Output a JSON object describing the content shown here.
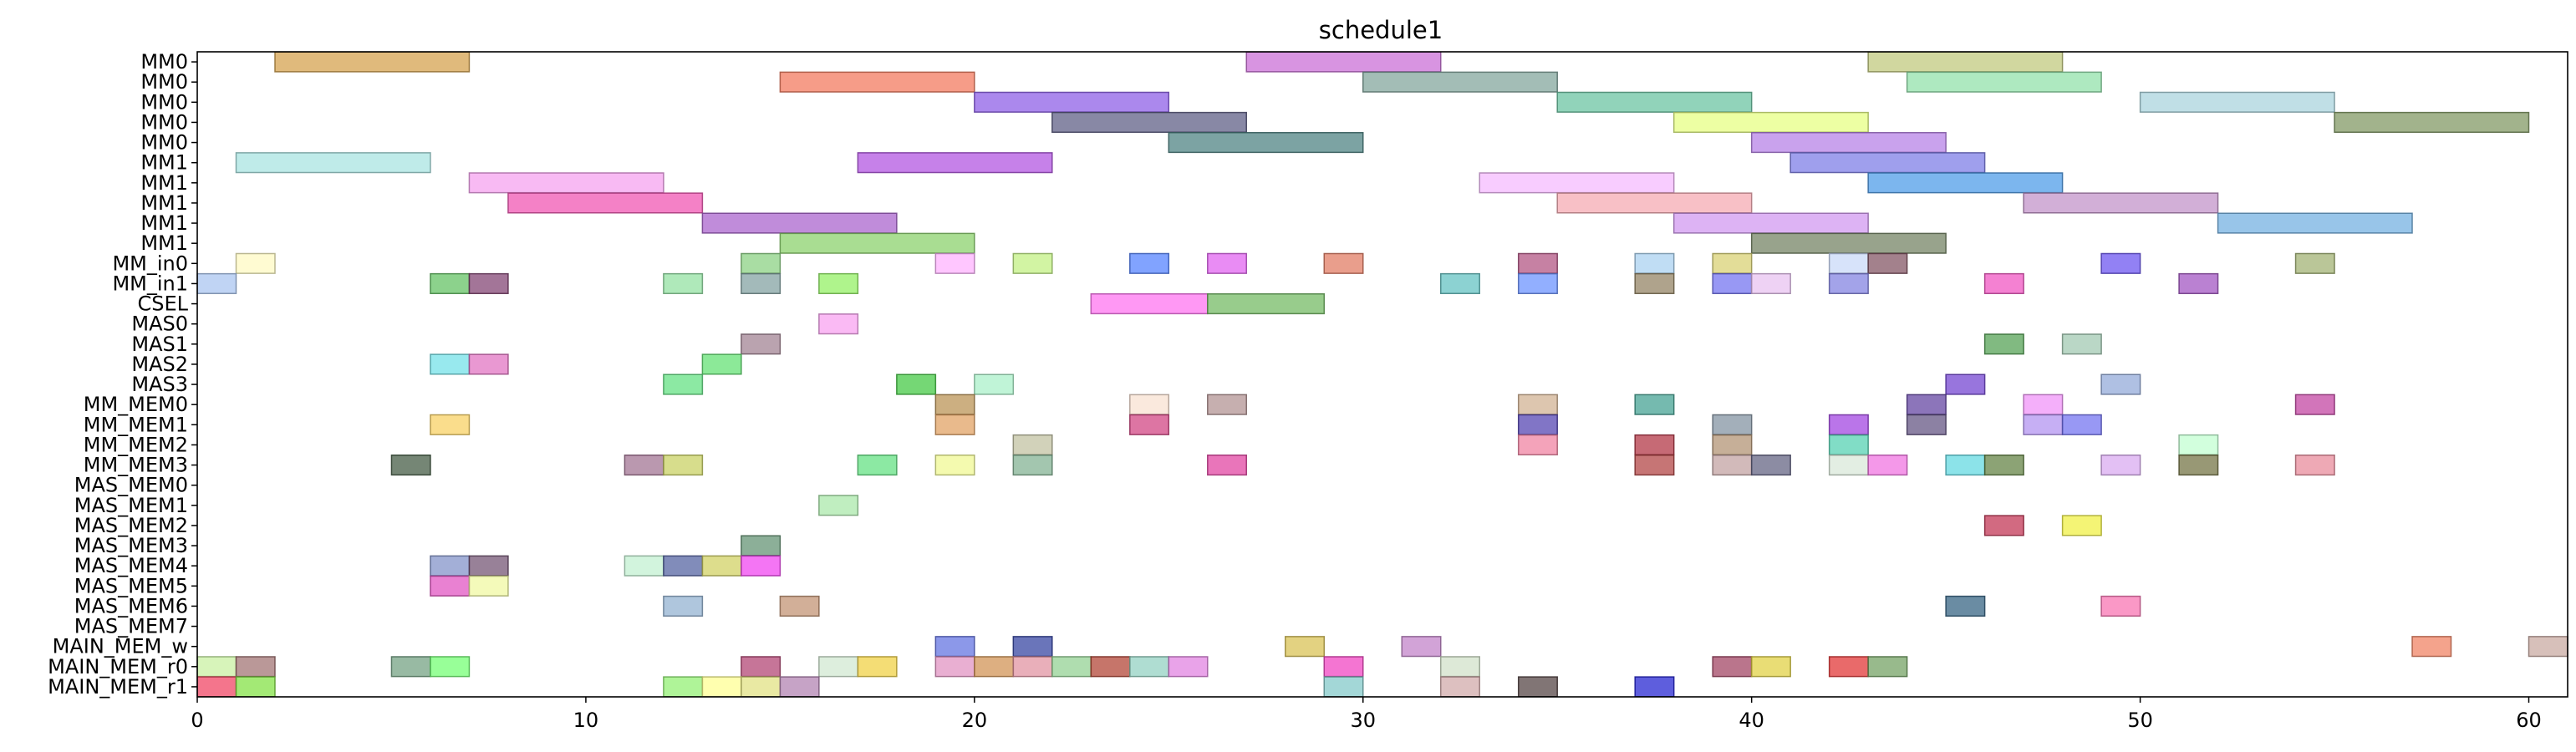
{
  "chart_data": {
    "type": "gantt",
    "title": "schedule1",
    "xlabel": "",
    "ylabel": "",
    "xlim": [
      0,
      61
    ],
    "x_ticks": [
      0,
      10,
      20,
      30,
      40,
      50,
      60
    ],
    "grid": false,
    "legend": "none",
    "rows": [
      "MM0",
      "MM0",
      "MM0",
      "MM0",
      "MM0",
      "MM1",
      "MM1",
      "MM1",
      "MM1",
      "MM1",
      "MM_in0",
      "MM_in1",
      "CSEL",
      "MAS0",
      "MAS1",
      "MAS2",
      "MAS3",
      "MM_MEM0",
      "MM_MEM1",
      "MM_MEM2",
      "MM_MEM3",
      "MAS_MEM0",
      "MAS_MEM1",
      "MAS_MEM2",
      "MAS_MEM3",
      "MAS_MEM4",
      "MAS_MEM5",
      "MAS_MEM6",
      "MAS_MEM7",
      "MAIN_MEM_w",
      "MAIN_MEM_r0",
      "MAIN_MEM_r1"
    ],
    "tasks": [
      {
        "row": 0,
        "start": 2,
        "end": 7,
        "color": "#d4a04a"
      },
      {
        "row": 0,
        "start": 27,
        "end": 32,
        "color": "#c96bd6"
      },
      {
        "row": 0,
        "start": 43,
        "end": 48,
        "color": "#bfc87a"
      },
      {
        "row": 1,
        "start": 15,
        "end": 20,
        "color": "#f2765a"
      },
      {
        "row": 1,
        "start": 30,
        "end": 35,
        "color": "#7fa39a"
      },
      {
        "row": 1,
        "start": 44,
        "end": 49,
        "color": "#8fe0a8"
      },
      {
        "row": 2,
        "start": 20,
        "end": 25,
        "color": "#8a5ae6"
      },
      {
        "row": 2,
        "start": 35,
        "end": 40,
        "color": "#66c2a0"
      },
      {
        "row": 2,
        "start": 50,
        "end": 55,
        "color": "#a8d3dc"
      },
      {
        "row": 3,
        "start": 22,
        "end": 27,
        "color": "#5a5a82"
      },
      {
        "row": 3,
        "start": 38,
        "end": 43,
        "color": "#e6ff80"
      },
      {
        "row": 3,
        "start": 55,
        "end": 60,
        "color": "#7e9660"
      },
      {
        "row": 4,
        "start": 25,
        "end": 30,
        "color": "#4a8080"
      },
      {
        "row": 4,
        "start": 40,
        "end": 45,
        "color": "#b47ee6"
      },
      {
        "row": 5,
        "start": 1,
        "end": 6,
        "color": "#a6e3e0"
      },
      {
        "row": 5,
        "start": 17,
        "end": 22,
        "color": "#b050e0"
      },
      {
        "row": 5,
        "start": 41,
        "end": 46,
        "color": "#7a7ae6"
      },
      {
        "row": 6,
        "start": 7,
        "end": 12,
        "color": "#f5a0ee"
      },
      {
        "row": 6,
        "start": 33,
        "end": 38,
        "color": "#f5b8ff"
      },
      {
        "row": 6,
        "start": 43,
        "end": 48,
        "color": "#4a9ae8"
      },
      {
        "row": 7,
        "start": 8,
        "end": 13,
        "color": "#f050b0"
      },
      {
        "row": 7,
        "start": 35,
        "end": 40,
        "color": "#f5a8b0"
      },
      {
        "row": 7,
        "start": 47,
        "end": 52,
        "color": "#c090c8"
      },
      {
        "row": 8,
        "start": 13,
        "end": 18,
        "color": "#a860cc"
      },
      {
        "row": 8,
        "start": 38,
        "end": 43,
        "color": "#d096f0"
      },
      {
        "row": 8,
        "start": 52,
        "end": 57,
        "color": "#70aee0"
      },
      {
        "row": 9,
        "start": 15,
        "end": 20,
        "color": "#88d068"
      },
      {
        "row": 9,
        "start": 40,
        "end": 45,
        "color": "#708060"
      },
      {
        "row": 10,
        "start": 1,
        "end": 2,
        "color": "#fffac0"
      },
      {
        "row": 10,
        "start": 14,
        "end": 15,
        "color": "#88d080"
      },
      {
        "row": 10,
        "start": 19,
        "end": 20,
        "color": "#ffb0ff"
      },
      {
        "row": 10,
        "start": 21,
        "end": 22,
        "color": "#c0f080"
      },
      {
        "row": 10,
        "start": 24,
        "end": 25,
        "color": "#5080ff"
      },
      {
        "row": 10,
        "start": 26,
        "end": 27,
        "color": "#e060f0"
      },
      {
        "row": 10,
        "start": 29,
        "end": 30,
        "color": "#e07860"
      },
      {
        "row": 10,
        "start": 34,
        "end": 35,
        "color": "#b05080"
      },
      {
        "row": 10,
        "start": 37,
        "end": 38,
        "color": "#a8d0f0"
      },
      {
        "row": 10,
        "start": 39,
        "end": 40,
        "color": "#d8d070"
      },
      {
        "row": 10,
        "start": 42,
        "end": 43,
        "color": "#c8d8f8"
      },
      {
        "row": 10,
        "start": 43,
        "end": 44,
        "color": "#805060"
      },
      {
        "row": 10,
        "start": 49,
        "end": 50,
        "color": "#6850f0"
      },
      {
        "row": 10,
        "start": 54,
        "end": 55,
        "color": "#a0b070"
      },
      {
        "row": 11,
        "start": 0,
        "end": 1,
        "color": "#a8c4f0"
      },
      {
        "row": 11,
        "start": 6,
        "end": 7,
        "color": "#60c060"
      },
      {
        "row": 11,
        "start": 7,
        "end": 8,
        "color": "#804070"
      },
      {
        "row": 11,
        "start": 12,
        "end": 13,
        "color": "#90e0a0"
      },
      {
        "row": 11,
        "start": 14,
        "end": 15,
        "color": "#80a0a0"
      },
      {
        "row": 11,
        "start": 16,
        "end": 17,
        "color": "#90f060"
      },
      {
        "row": 11,
        "start": 32,
        "end": 33,
        "color": "#60c0c0"
      },
      {
        "row": 11,
        "start": 34,
        "end": 35,
        "color": "#6890ff"
      },
      {
        "row": 11,
        "start": 37,
        "end": 38,
        "color": "#908060"
      },
      {
        "row": 11,
        "start": 39,
        "end": 40,
        "color": "#7070f0"
      },
      {
        "row": 11,
        "start": 40,
        "end": 41,
        "color": "#e8c0f0"
      },
      {
        "row": 11,
        "start": 42,
        "end": 43,
        "color": "#8080e0"
      },
      {
        "row": 11,
        "start": 46,
        "end": 47,
        "color": "#f050c0"
      },
      {
        "row": 11,
        "start": 51,
        "end": 52,
        "color": "#a050c0"
      },
      {
        "row": 12,
        "start": 23,
        "end": 26,
        "color": "#ff70f0"
      },
      {
        "row": 12,
        "start": 26,
        "end": 29,
        "color": "#70b860"
      },
      {
        "row": 13,
        "start": 16,
        "end": 17,
        "color": "#f8a0f0"
      },
      {
        "row": 14,
        "start": 14,
        "end": 15,
        "color": "#a08090"
      },
      {
        "row": 14,
        "start": 46,
        "end": 47,
        "color": "#50a050"
      },
      {
        "row": 14,
        "start": 48,
        "end": 49,
        "color": "#a0c8b0"
      },
      {
        "row": 15,
        "start": 6,
        "end": 7,
        "color": "#70e0e8"
      },
      {
        "row": 15,
        "start": 7,
        "end": 8,
        "color": "#e070c0"
      },
      {
        "row": 15,
        "start": 13,
        "end": 14,
        "color": "#60e070"
      },
      {
        "row": 16,
        "start": 12,
        "end": 13,
        "color": "#60e080"
      },
      {
        "row": 16,
        "start": 18,
        "end": 19,
        "color": "#40c840"
      },
      {
        "row": 16,
        "start": 20,
        "end": 21,
        "color": "#a8f0c8"
      },
      {
        "row": 16,
        "start": 45,
        "end": 46,
        "color": "#7040d0"
      },
      {
        "row": 16,
        "start": 49,
        "end": 50,
        "color": "#90a8d8"
      },
      {
        "row": 17,
        "start": 19,
        "end": 20,
        "color": "#b89050"
      },
      {
        "row": 17,
        "start": 24,
        "end": 25,
        "color": "#f8e0d0"
      },
      {
        "row": 17,
        "start": 26,
        "end": 27,
        "color": "#b09090"
      },
      {
        "row": 17,
        "start": 34,
        "end": 35,
        "color": "#d0b090"
      },
      {
        "row": 17,
        "start": 37,
        "end": 38,
        "color": "#40a090"
      },
      {
        "row": 17,
        "start": 44,
        "end": 45,
        "color": "#6040a0"
      },
      {
        "row": 17,
        "start": 47,
        "end": 48,
        "color": "#f090f8"
      },
      {
        "row": 17,
        "start": 54,
        "end": 55,
        "color": "#c040a0"
      },
      {
        "row": 18,
        "start": 6,
        "end": 7,
        "color": "#f8d060"
      },
      {
        "row": 18,
        "start": 19,
        "end": 20,
        "color": "#e0a060"
      },
      {
        "row": 18,
        "start": 24,
        "end": 25,
        "color": "#d04080"
      },
      {
        "row": 18,
        "start": 34,
        "end": 35,
        "color": "#5040b0"
      },
      {
        "row": 18,
        "start": 39,
        "end": 40,
        "color": "#8090a0"
      },
      {
        "row": 18,
        "start": 42,
        "end": 43,
        "color": "#a040e0"
      },
      {
        "row": 18,
        "start": 44,
        "end": 45,
        "color": "#605080"
      },
      {
        "row": 18,
        "start": 47,
        "end": 48,
        "color": "#b090f0"
      },
      {
        "row": 18,
        "start": 48,
        "end": 49,
        "color": "#7070f0"
      },
      {
        "row": 19,
        "start": 21,
        "end": 22,
        "color": "#c0c0a0"
      },
      {
        "row": 19,
        "start": 34,
        "end": 35,
        "color": "#f080a0"
      },
      {
        "row": 19,
        "start": 37,
        "end": 38,
        "color": "#b03040"
      },
      {
        "row": 19,
        "start": 39,
        "end": 40,
        "color": "#b09070"
      },
      {
        "row": 19,
        "start": 42,
        "end": 43,
        "color": "#50d0b0"
      },
      {
        "row": 19,
        "start": 51,
        "end": 52,
        "color": "#c0ffd0"
      },
      {
        "row": 20,
        "start": 5,
        "end": 6,
        "color": "#405840"
      },
      {
        "row": 20,
        "start": 11,
        "end": 12,
        "color": "#a07090"
      },
      {
        "row": 20,
        "start": 12,
        "end": 13,
        "color": "#c8d060"
      },
      {
        "row": 20,
        "start": 17,
        "end": 18,
        "color": "#60e080"
      },
      {
        "row": 20,
        "start": 19,
        "end": 20,
        "color": "#f0f890"
      },
      {
        "row": 20,
        "start": 21,
        "end": 22,
        "color": "#80b090"
      },
      {
        "row": 20,
        "start": 26,
        "end": 27,
        "color": "#e040a0"
      },
      {
        "row": 20,
        "start": 37,
        "end": 38,
        "color": "#b04040"
      },
      {
        "row": 20,
        "start": 39,
        "end": 40,
        "color": "#c0a0a0"
      },
      {
        "row": 20,
        "start": 40,
        "end": 41,
        "color": "#606080"
      },
      {
        "row": 20,
        "start": 42,
        "end": 43,
        "color": "#d8e8d8"
      },
      {
        "row": 20,
        "start": 43,
        "end": 44,
        "color": "#f070e0"
      },
      {
        "row": 20,
        "start": 45,
        "end": 46,
        "color": "#60d8e0"
      },
      {
        "row": 20,
        "start": 46,
        "end": 47,
        "color": "#608040"
      },
      {
        "row": 20,
        "start": 49,
        "end": 50,
        "color": "#d8a8f0"
      },
      {
        "row": 20,
        "start": 51,
        "end": 52,
        "color": "#707040"
      },
      {
        "row": 20,
        "start": 54,
        "end": 55,
        "color": "#e88898"
      },
      {
        "row": 22,
        "start": 16,
        "end": 17,
        "color": "#a8e8a8"
      },
      {
        "row": 23,
        "start": 46,
        "end": 47,
        "color": "#c03050"
      },
      {
        "row": 23,
        "start": 48,
        "end": 49,
        "color": "#f0f040"
      },
      {
        "row": 24,
        "start": 14,
        "end": 15,
        "color": "#609070"
      },
      {
        "row": 25,
        "start": 6,
        "end": 7,
        "color": "#8090c8"
      },
      {
        "row": 25,
        "start": 7,
        "end": 8,
        "color": "#705070"
      },
      {
        "row": 25,
        "start": 11,
        "end": 12,
        "color": "#c0f0d0"
      },
      {
        "row": 25,
        "start": 12,
        "end": 13,
        "color": "#5060a0"
      },
      {
        "row": 25,
        "start": 13,
        "end": 14,
        "color": "#d0d060"
      },
      {
        "row": 25,
        "start": 14,
        "end": 15,
        "color": "#f040f0"
      },
      {
        "row": 26,
        "start": 6,
        "end": 7,
        "color": "#e050c0"
      },
      {
        "row": 26,
        "start": 7,
        "end": 8,
        "color": "#f0f8a0"
      },
      {
        "row": 27,
        "start": 12,
        "end": 13,
        "color": "#90b0d0"
      },
      {
        "row": 27,
        "start": 15,
        "end": 16,
        "color": "#c09070"
      },
      {
        "row": 27,
        "start": 45,
        "end": 46,
        "color": "#306080"
      },
      {
        "row": 27,
        "start": 49,
        "end": 50,
        "color": "#f870b0"
      },
      {
        "row": 29,
        "start": 19,
        "end": 20,
        "color": "#6070e0"
      },
      {
        "row": 29,
        "start": 21,
        "end": 22,
        "color": "#3040a0"
      },
      {
        "row": 29,
        "start": 28,
        "end": 29,
        "color": "#d8c050"
      },
      {
        "row": 29,
        "start": 31,
        "end": 32,
        "color": "#c080c8"
      },
      {
        "row": 29,
        "start": 57,
        "end": 58,
        "color": "#f08060"
      },
      {
        "row": 29,
        "start": 60,
        "end": 61,
        "color": "#c8a8a0"
      },
      {
        "row": 30,
        "start": 0,
        "end": 1,
        "color": "#c8f0a0"
      },
      {
        "row": 30,
        "start": 1,
        "end": 2,
        "color": "#a07070"
      },
      {
        "row": 30,
        "start": 5,
        "end": 6,
        "color": "#70a080"
      },
      {
        "row": 30,
        "start": 6,
        "end": 7,
        "color": "#70ff70"
      },
      {
        "row": 30,
        "start": 14,
        "end": 15,
        "color": "#b04070"
      },
      {
        "row": 30,
        "start": 16,
        "end": 17,
        "color": "#d0e8d0"
      },
      {
        "row": 30,
        "start": 17,
        "end": 18,
        "color": "#f0d040"
      },
      {
        "row": 30,
        "start": 19,
        "end": 20,
        "color": "#e090c0"
      },
      {
        "row": 30,
        "start": 20,
        "end": 21,
        "color": "#d09050"
      },
      {
        "row": 30,
        "start": 21,
        "end": 22,
        "color": "#e090a0"
      },
      {
        "row": 30,
        "start": 22,
        "end": 23,
        "color": "#90d090"
      },
      {
        "row": 30,
        "start": 23,
        "end": 24,
        "color": "#b04030"
      },
      {
        "row": 30,
        "start": 24,
        "end": 25,
        "color": "#90d0c0"
      },
      {
        "row": 30,
        "start": 25,
        "end": 26,
        "color": "#e080e0"
      },
      {
        "row": 30,
        "start": 29,
        "end": 30,
        "color": "#f040c0"
      },
      {
        "row": 30,
        "start": 32,
        "end": 33,
        "color": "#d0e0c8"
      },
      {
        "row": 30,
        "start": 39,
        "end": 40,
        "color": "#a04060"
      },
      {
        "row": 30,
        "start": 40,
        "end": 41,
        "color": "#e0d040"
      },
      {
        "row": 30,
        "start": 42,
        "end": 43,
        "color": "#e03030"
      },
      {
        "row": 30,
        "start": 43,
        "end": 44,
        "color": "#70a060"
      },
      {
        "row": 31,
        "start": 0,
        "end": 1,
        "color": "#f04060"
      },
      {
        "row": 31,
        "start": 1,
        "end": 2,
        "color": "#80e040"
      },
      {
        "row": 31,
        "start": 12,
        "end": 13,
        "color": "#90f070"
      },
      {
        "row": 31,
        "start": 13,
        "end": 14,
        "color": "#ffff90"
      },
      {
        "row": 31,
        "start": 14,
        "end": 15,
        "color": "#e0e080"
      },
      {
        "row": 31,
        "start": 15,
        "end": 16,
        "color": "#b080b0"
      },
      {
        "row": 31,
        "start": 29,
        "end": 30,
        "color": "#80c8c8"
      },
      {
        "row": 31,
        "start": 32,
        "end": 33,
        "color": "#d0a8a8"
      },
      {
        "row": 31,
        "start": 34,
        "end": 35,
        "color": "#504040"
      },
      {
        "row": 31,
        "start": 37,
        "end": 38,
        "color": "#2020d0"
      }
    ]
  }
}
